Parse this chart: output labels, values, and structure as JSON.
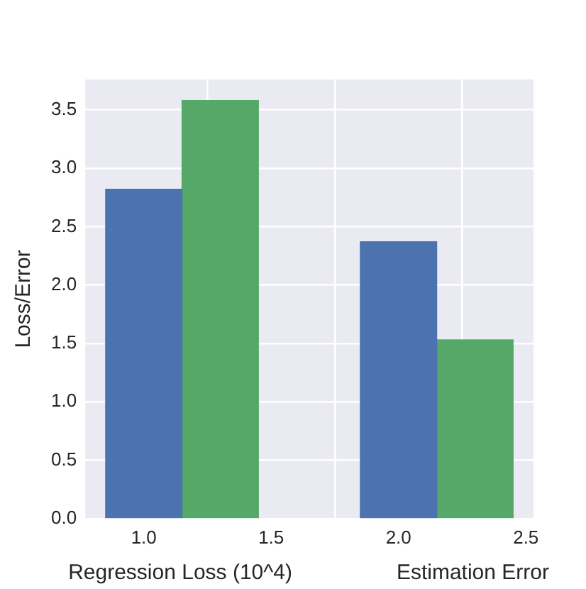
{
  "chart_data": {
    "type": "bar",
    "ylabel": "Loss/Error",
    "series": [
      {
        "color": "#4c72b0",
        "x": [
          1.0,
          2.0
        ],
        "values": [
          2.82,
          2.37
        ]
      },
      {
        "color": "#55a868",
        "x": [
          1.3,
          2.3
        ],
        "values": [
          3.58,
          1.53
        ]
      }
    ],
    "xlim": [
      0.77,
      2.53
    ],
    "xticks": [
      {
        "value": 1.0,
        "label": "1.0"
      },
      {
        "value": 1.5,
        "label": "1.5"
      },
      {
        "value": 2.0,
        "label": "2.0"
      },
      {
        "value": 2.5,
        "label": "2.5"
      }
    ],
    "ylim": [
      0,
      3.76
    ],
    "yticks": [
      {
        "value": 0,
        "label": "0.0"
      },
      {
        "value": 0.5,
        "label": "0.5"
      },
      {
        "value": 1.0,
        "label": "1.0"
      },
      {
        "value": 1.5,
        "label": "1.5"
      },
      {
        "value": 2.0,
        "label": "2.0"
      },
      {
        "value": 2.5,
        "label": "2.5"
      },
      {
        "value": 3.0,
        "label": "3.0"
      },
      {
        "value": 3.5,
        "label": "3.5"
      }
    ],
    "annotations": [
      "Regression Loss (10^4)",
      "Estimation Error"
    ],
    "grid": true,
    "legend": false
  }
}
